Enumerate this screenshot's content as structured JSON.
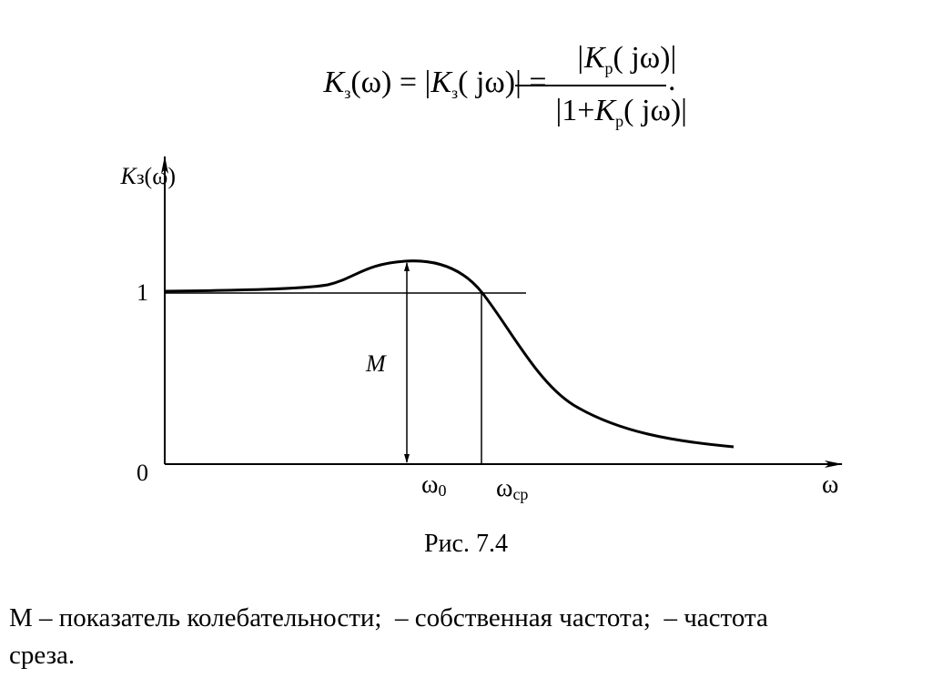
{
  "formula": {
    "k1": "K",
    "sub1": "з",
    "part1": "(ω) = |",
    "k2": "K",
    "sub2": "з",
    "part2": "( jω)| =",
    "num_k": "|K",
    "num_sub": "р",
    "num_arg": "( jω)|",
    "den_one": "|1+",
    "den_k": "K",
    "den_sub": "р",
    "den_arg": "( jω)|",
    "period": "."
  },
  "graph": {
    "y_label": {
      "symbol": "K",
      "sub": "з",
      "arg": "(ω)"
    },
    "y_tick_1": "1",
    "y_tick_0": "0",
    "m_label": "M",
    "omega0": {
      "symbol": "ω",
      "sub": "0"
    },
    "omega_cp": {
      "symbol": "ω",
      "sub": "ср"
    },
    "x_label": "ω"
  },
  "caption": "Рис. 7.4",
  "description": [
    "М – показатель колебательности;  – собственная частота;  – частота",
    "среза."
  ]
}
